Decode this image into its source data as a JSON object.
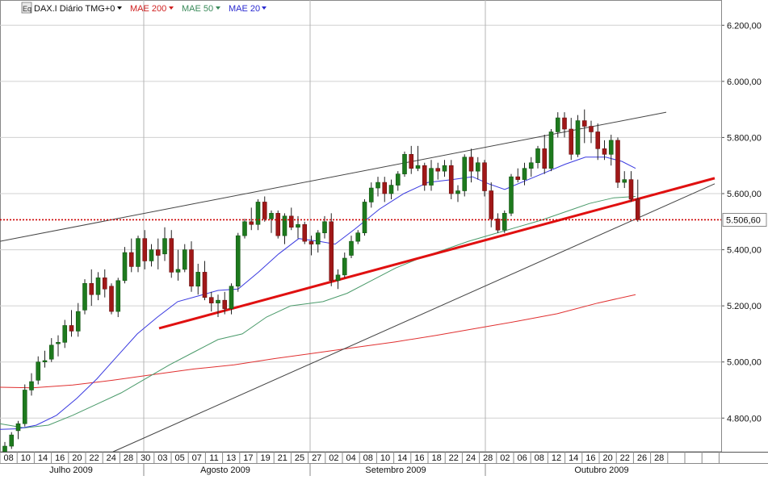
{
  "header": {
    "symbol_label": "DAX.I Diário TMG+0",
    "ma_labels": [
      {
        "label": "MAE 200",
        "color": "#d02020"
      },
      {
        "label": "MAE 50",
        "color": "#3a8a5a"
      },
      {
        "label": "MAE 20",
        "color": "#2a2ad0"
      }
    ]
  },
  "chart_data": {
    "type": "candlestick",
    "title": "DAX.I Diário TMG+0",
    "ylim": [
      4680,
      6290
    ],
    "y_ticks": [
      {
        "v": 4800,
        "label": "4.800,00"
      },
      {
        "v": 5000,
        "label": "5.000,00"
      },
      {
        "v": 5200,
        "label": "5.200,00"
      },
      {
        "v": 5400,
        "label": "5.400,00"
      },
      {
        "v": 5600,
        "label": "5.600,00"
      },
      {
        "v": 5800,
        "label": "5.800,00"
      },
      {
        "v": 6000,
        "label": "6.000,00"
      },
      {
        "v": 6200,
        "label": "6.200,00"
      }
    ],
    "last_price": {
      "v": 5506.6,
      "label": "5.506,60",
      "color": "#cc0000"
    },
    "day_labels": [
      "08",
      "10",
      "14",
      "16",
      "20",
      "22",
      "24",
      "28",
      "30",
      "03",
      "05",
      "07",
      "11",
      "13",
      "17",
      "19",
      "21",
      "25",
      "27",
      "02",
      "04",
      "08",
      "10",
      "14",
      "16",
      "18",
      "22",
      "24",
      "28",
      "02",
      "06",
      "08",
      "12",
      "14",
      "16",
      "20",
      "22",
      "26",
      "28"
    ],
    "month_labels": [
      "Julho 2009",
      "Agosto 2009",
      "Setembro 2009",
      "Outubro 2009"
    ],
    "candles": [
      [
        4680,
        4715,
        4660,
        4700
      ],
      [
        4700,
        4750,
        4690,
        4740
      ],
      [
        4755,
        4790,
        4725,
        4780
      ],
      [
        4780,
        4920,
        4770,
        4900
      ],
      [
        4900,
        4960,
        4880,
        4930
      ],
      [
        4935,
        5020,
        4920,
        5000
      ],
      [
        5000,
        5040,
        4980,
        5005
      ],
      [
        5010,
        5085,
        5000,
        5060
      ],
      [
        5065,
        5095,
        5020,
        5070
      ],
      [
        5070,
        5150,
        5050,
        5130
      ],
      [
        5130,
        5185,
        5090,
        5110
      ],
      [
        5110,
        5210,
        5090,
        5180
      ],
      [
        5185,
        5295,
        5170,
        5280
      ],
      [
        5280,
        5330,
        5200,
        5240
      ],
      [
        5240,
        5320,
        5220,
        5300
      ],
      [
        5300,
        5330,
        5230,
        5260
      ],
      [
        5270,
        5280,
        5170,
        5180
      ],
      [
        5180,
        5300,
        5160,
        5290
      ],
      [
        5290,
        5410,
        5280,
        5390
      ],
      [
        5390,
        5440,
        5320,
        5340
      ],
      [
        5340,
        5450,
        5320,
        5440
      ],
      [
        5440,
        5470,
        5330,
        5360
      ],
      [
        5360,
        5420,
        5340,
        5400
      ],
      [
        5400,
        5440,
        5330,
        5380
      ],
      [
        5385,
        5480,
        5360,
        5440
      ],
      [
        5440,
        5470,
        5300,
        5320
      ],
      [
        5320,
        5400,
        5290,
        5330
      ],
      [
        5330,
        5420,
        5320,
        5400
      ],
      [
        5400,
        5430,
        5250,
        5270
      ],
      [
        5270,
        5350,
        5240,
        5320
      ],
      [
        5320,
        5360,
        5220,
        5230
      ],
      [
        5230,
        5250,
        5180,
        5210
      ],
      [
        5210,
        5240,
        5160,
        5220
      ],
      [
        5220,
        5250,
        5170,
        5190
      ],
      [
        5190,
        5280,
        5170,
        5270
      ],
      [
        5270,
        5460,
        5250,
        5450
      ],
      [
        5450,
        5510,
        5440,
        5500
      ],
      [
        5500,
        5550,
        5470,
        5490
      ],
      [
        5490,
        5580,
        5470,
        5570
      ],
      [
        5570,
        5590,
        5500,
        5510
      ],
      [
        5510,
        5540,
        5460,
        5530
      ],
      [
        5530,
        5540,
        5440,
        5450
      ],
      [
        5450,
        5530,
        5420,
        5520
      ],
      [
        5520,
        5550,
        5470,
        5480
      ],
      [
        5480,
        5520,
        5440,
        5490
      ],
      [
        5490,
        5500,
        5420,
        5430
      ],
      [
        5430,
        5450,
        5380,
        5420
      ],
      [
        5420,
        5470,
        5390,
        5460
      ],
      [
        5460,
        5520,
        5440,
        5500
      ],
      [
        5500,
        5530,
        5270,
        5290
      ],
      [
        5290,
        5330,
        5260,
        5310
      ],
      [
        5310,
        5390,
        5300,
        5370
      ],
      [
        5380,
        5450,
        5370,
        5430
      ],
      [
        5430,
        5470,
        5420,
        5460
      ],
      [
        5460,
        5580,
        5450,
        5570
      ],
      [
        5570,
        5640,
        5550,
        5620
      ],
      [
        5620,
        5660,
        5590,
        5640
      ],
      [
        5640,
        5660,
        5570,
        5600
      ],
      [
        5600,
        5650,
        5580,
        5630
      ],
      [
        5630,
        5680,
        5610,
        5670
      ],
      [
        5670,
        5750,
        5660,
        5740
      ],
      [
        5740,
        5770,
        5670,
        5690
      ],
      [
        5690,
        5770,
        5680,
        5700
      ],
      [
        5700,
        5710,
        5610,
        5630
      ],
      [
        5630,
        5720,
        5610,
        5690
      ],
      [
        5690,
        5710,
        5650,
        5680
      ],
      [
        5680,
        5720,
        5660,
        5700
      ],
      [
        5700,
        5720,
        5580,
        5600
      ],
      [
        5600,
        5630,
        5570,
        5610
      ],
      [
        5610,
        5740,
        5590,
        5730
      ],
      [
        5730,
        5760,
        5640,
        5680
      ],
      [
        5680,
        5730,
        5650,
        5710
      ],
      [
        5710,
        5720,
        5590,
        5610
      ],
      [
        5610,
        5640,
        5480,
        5510
      ],
      [
        5510,
        5530,
        5460,
        5470
      ],
      [
        5470,
        5540,
        5460,
        5530
      ],
      [
        5530,
        5670,
        5520,
        5660
      ],
      [
        5660,
        5690,
        5640,
        5650
      ],
      [
        5650,
        5710,
        5630,
        5690
      ],
      [
        5690,
        5730,
        5660,
        5710
      ],
      [
        5710,
        5770,
        5690,
        5760
      ],
      [
        5760,
        5810,
        5670,
        5690
      ],
      [
        5690,
        5830,
        5680,
        5820
      ],
      [
        5820,
        5890,
        5800,
        5870
      ],
      [
        5870,
        5890,
        5800,
        5830
      ],
      [
        5830,
        5870,
        5720,
        5740
      ],
      [
        5740,
        5880,
        5730,
        5860
      ],
      [
        5860,
        5900,
        5780,
        5840
      ],
      [
        5840,
        5860,
        5780,
        5820
      ],
      [
        5820,
        5850,
        5720,
        5760
      ],
      [
        5760,
        5790,
        5720,
        5740
      ],
      [
        5740,
        5810,
        5700,
        5790
      ],
      [
        5790,
        5800,
        5620,
        5640
      ],
      [
        5640,
        5680,
        5620,
        5650
      ],
      [
        5650,
        5680,
        5570,
        5580
      ],
      [
        5580,
        5650,
        5500,
        5507
      ]
    ],
    "ma20": [
      [
        0,
        4760
      ],
      [
        22,
        4762
      ],
      [
        45,
        4775
      ],
      [
        70,
        4810
      ],
      [
        95,
        4870
      ],
      [
        120,
        4940
      ],
      [
        145,
        5020
      ],
      [
        170,
        5100
      ],
      [
        195,
        5160
      ],
      [
        220,
        5215
      ],
      [
        245,
        5235
      ],
      [
        270,
        5255
      ],
      [
        295,
        5260
      ],
      [
        320,
        5320
      ],
      [
        345,
        5385
      ],
      [
        370,
        5440
      ],
      [
        395,
        5430
      ],
      [
        415,
        5420
      ],
      [
        440,
        5475
      ],
      [
        470,
        5545
      ],
      [
        500,
        5600
      ],
      [
        530,
        5640
      ],
      [
        560,
        5650
      ],
      [
        585,
        5660
      ],
      [
        605,
        5635
      ],
      [
        625,
        5615
      ],
      [
        650,
        5645
      ],
      [
        675,
        5675
      ],
      [
        700,
        5705
      ],
      [
        725,
        5730
      ],
      [
        750,
        5730
      ],
      [
        770,
        5715
      ],
      [
        787,
        5690
      ]
    ],
    "ma50": [
      [
        0,
        4780
      ],
      [
        30,
        4765
      ],
      [
        60,
        4775
      ],
      [
        90,
        4810
      ],
      [
        120,
        4850
      ],
      [
        150,
        4890
      ],
      [
        180,
        4940
      ],
      [
        210,
        4990
      ],
      [
        240,
        5035
      ],
      [
        270,
        5080
      ],
      [
        300,
        5100
      ],
      [
        330,
        5160
      ],
      [
        360,
        5200
      ],
      [
        400,
        5215
      ],
      [
        430,
        5245
      ],
      [
        460,
        5290
      ],
      [
        490,
        5335
      ],
      [
        520,
        5370
      ],
      [
        550,
        5400
      ],
      [
        580,
        5430
      ],
      [
        610,
        5455
      ],
      [
        640,
        5480
      ],
      [
        670,
        5505
      ],
      [
        700,
        5535
      ],
      [
        730,
        5565
      ],
      [
        760,
        5585
      ],
      [
        787,
        5590
      ]
    ],
    "ma200": [
      [
        0,
        4910
      ],
      [
        40,
        4908
      ],
      [
        90,
        4918
      ],
      [
        140,
        4935
      ],
      [
        190,
        4955
      ],
      [
        240,
        4975
      ],
      [
        290,
        4990
      ],
      [
        340,
        5012
      ],
      [
        390,
        5032
      ],
      [
        440,
        5052
      ],
      [
        490,
        5072
      ],
      [
        540,
        5095
      ],
      [
        590,
        5120
      ],
      [
        640,
        5145
      ],
      [
        690,
        5172
      ],
      [
        740,
        5210
      ],
      [
        787,
        5240
      ]
    ],
    "trendlines": [
      {
        "from": [
          0,
          5430
        ],
        "to": [
          825,
          5890
        ],
        "color": "#444444",
        "width": 1
      },
      {
        "from": [
          140,
          4680
        ],
        "to": [
          885,
          5635
        ],
        "color": "#444444",
        "width": 1
      },
      {
        "from": [
          197,
          5120
        ],
        "to": [
          885,
          5655
        ],
        "color": "#e01010",
        "width": 3
      }
    ]
  }
}
